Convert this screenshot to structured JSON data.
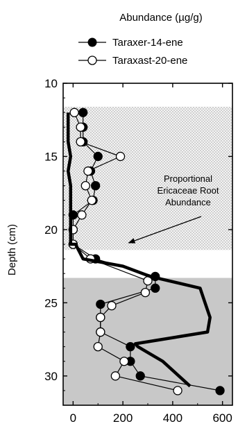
{
  "chart_data": {
    "type": "line",
    "title": "Abundance (µg/g)",
    "xlabel": "",
    "ylabel": "Depth (cm)",
    "xlim": [
      -40,
      640
    ],
    "ylim": [
      10,
      32
    ],
    "y_inverted": true,
    "x_ticks": [
      0,
      200,
      400,
      600
    ],
    "x_tick_labels": [
      "0",
      "200",
      "400",
      "600"
    ],
    "y_ticks": [
      10,
      15,
      20,
      25,
      30
    ],
    "y_tick_labels": [
      "10",
      "15",
      "20",
      "25",
      "30"
    ],
    "legend_position": "top",
    "background_bands": [
      {
        "from_depth": 11.6,
        "to_depth": 21.4,
        "fill": "dotted",
        "color": "#cfcfcf"
      },
      {
        "from_depth": 23.3,
        "to_depth": 32,
        "fill": "solid",
        "color": "#c8c8c8"
      }
    ],
    "series": [
      {
        "name": "Taraxer-14-ene",
        "marker": "filled-circle",
        "color": "#000000",
        "x": [
          40,
          40,
          40,
          100,
          70,
          90,
          80,
          0,
          0,
          0,
          90,
          330,
          330,
          110,
          110,
          110,
          230,
          230,
          270,
          590
        ],
        "y": [
          12,
          13,
          14,
          15,
          16,
          17,
          18,
          19,
          20,
          21,
          22,
          23.2,
          24,
          25.1,
          26,
          27,
          28,
          29,
          30,
          31
        ]
      },
      {
        "name": "Taraxast-20-ene",
        "marker": "open-circle",
        "color": "#000000",
        "x": [
          5,
          30,
          30,
          190,
          60,
          50,
          75,
          35,
          0,
          0,
          70,
          300,
          290,
          155,
          110,
          110,
          100,
          205,
          170,
          420
        ],
        "y": [
          12,
          13,
          14,
          15,
          16,
          17,
          18,
          19,
          20,
          21,
          22,
          23.5,
          24.3,
          25.2,
          26,
          27,
          28,
          29,
          30,
          31
        ]
      },
      {
        "name": "",
        "marker": "none",
        "line_width": "thick",
        "color": "#000000",
        "x": [
          -20,
          -20,
          -20,
          -10,
          -20,
          -10,
          -10,
          -10,
          -10,
          -10,
          10,
          40,
          200,
          310,
          510,
          530,
          550,
          540,
          250,
          260,
          360,
          470
        ],
        "y": [
          12,
          13,
          14,
          15,
          16,
          17,
          18,
          19,
          20,
          21,
          21,
          22,
          22.5,
          23.2,
          24,
          25,
          26,
          27,
          27.8,
          28,
          29,
          30.7
        ]
      }
    ],
    "annotations": [
      {
        "text_lines": [
          "Proportional",
          "Ericaceae Root",
          "Abundance"
        ],
        "arrow_to": {
          "x": 240,
          "y": 21
        }
      }
    ]
  }
}
